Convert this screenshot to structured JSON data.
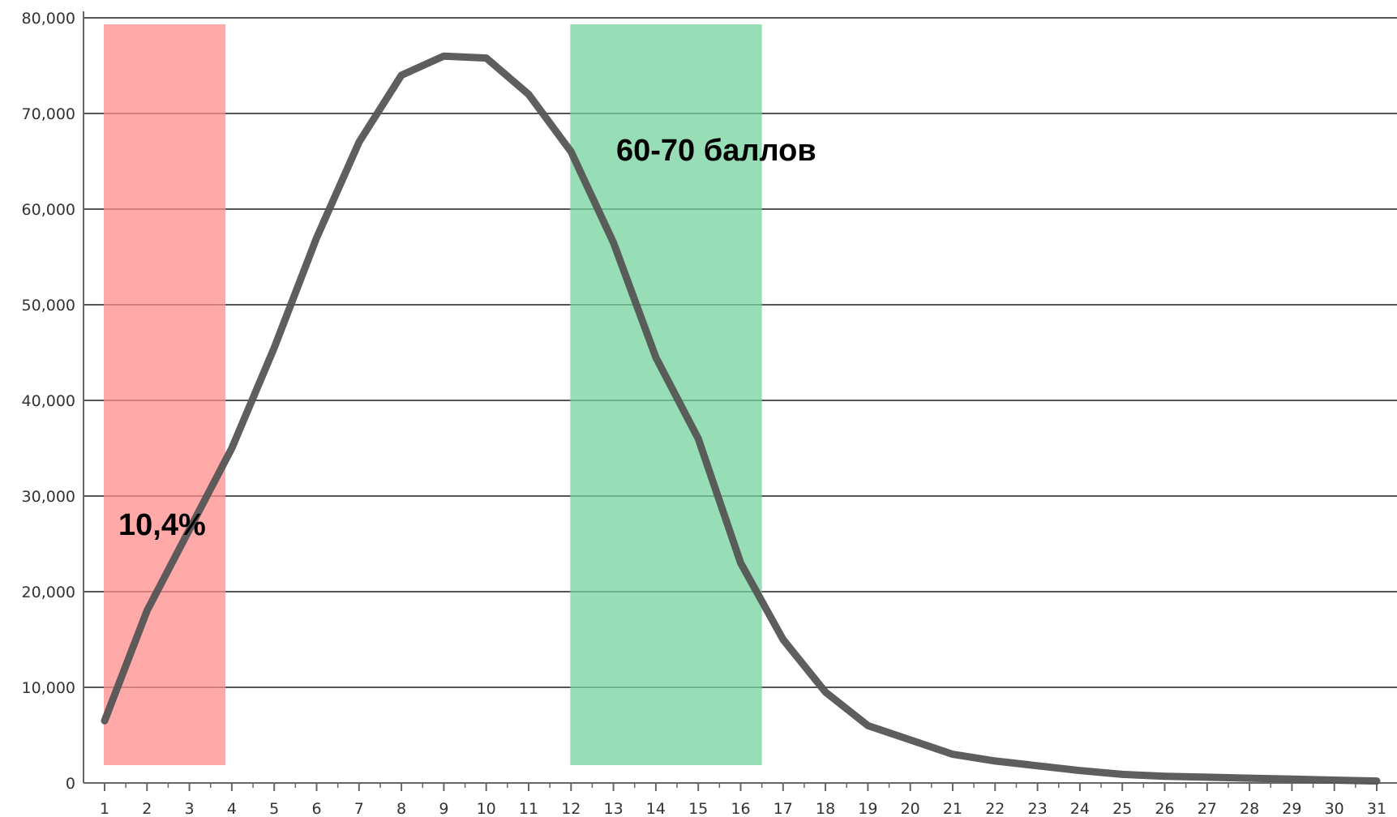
{
  "chart_data": {
    "type": "line",
    "x": [
      1,
      2,
      3,
      4,
      5,
      6,
      7,
      8,
      9,
      10,
      11,
      12,
      13,
      14,
      15,
      16,
      17,
      18,
      19,
      20,
      21,
      22,
      23,
      24,
      25,
      26,
      27,
      28,
      29,
      30,
      31
    ],
    "values": [
      6500,
      18000,
      26500,
      35000,
      45500,
      57000,
      67000,
      74000,
      76000,
      75800,
      72000,
      66000,
      56500,
      44500,
      36000,
      23000,
      15000,
      9500,
      6000,
      4500,
      3000,
      2300,
      1800,
      1300,
      900,
      700,
      600,
      500,
      400,
      300,
      200
    ],
    "ylim": [
      0,
      80000
    ],
    "yticks": [
      "0",
      "10,000",
      "20,000",
      "30,000",
      "40,000",
      "50,000",
      "60,000",
      "70,000",
      "80,000"
    ],
    "xticks": [
      "1",
      "2",
      "3",
      "4",
      "5",
      "6",
      "7",
      "8",
      "9",
      "10",
      "11",
      "12",
      "13",
      "14",
      "15",
      "16",
      "17",
      "18",
      "19",
      "20",
      "21",
      "22",
      "23",
      "24",
      "25",
      "26",
      "27",
      "28",
      "29",
      "30",
      "31"
    ],
    "grid": true,
    "legend": "none",
    "line_color": "#555555",
    "bands": [
      {
        "x_start": 1,
        "x_end": 3.85,
        "color": "#ff8c8c",
        "label": "10,4%"
      },
      {
        "x_start": 12,
        "x_end": 16.5,
        "color": "#74d19e",
        "label": "60-70 баллов"
      }
    ],
    "title": "",
    "xlabel": "",
    "ylabel": ""
  }
}
